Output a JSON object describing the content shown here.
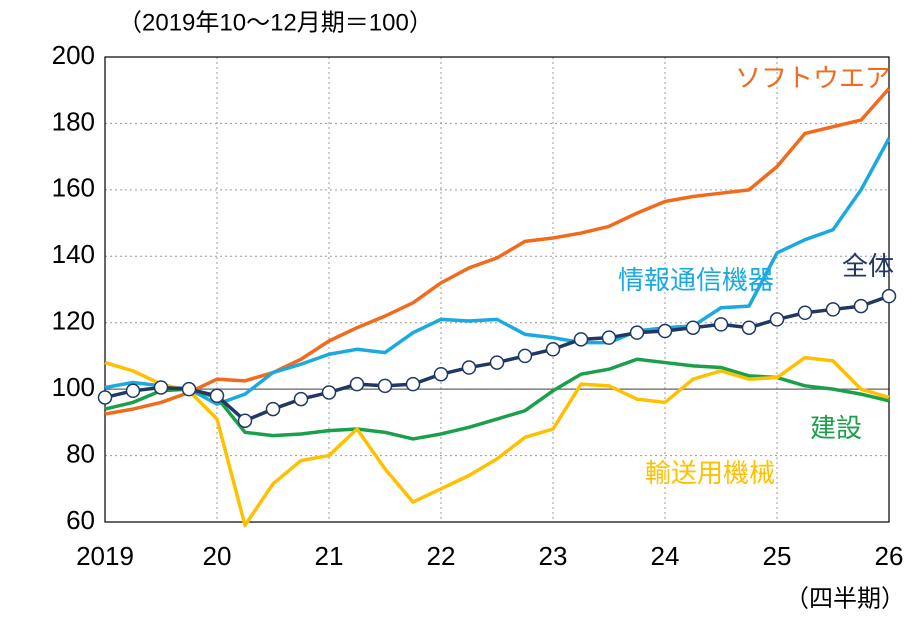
{
  "chart_data": {
    "type": "line",
    "title": "（2019年10～12月期＝100）",
    "x_label": "（四半期）",
    "x": [
      2019,
      2019.25,
      2019.5,
      2019.75,
      2020,
      2020.25,
      2020.5,
      2020.75,
      2021,
      2021.25,
      2021.5,
      2021.75,
      2022,
      2022.25,
      2022.5,
      2022.75,
      2023,
      2023.25,
      2023.5,
      2023.75,
      2024,
      2024.25,
      2024.5,
      2024.75,
      2025,
      2025.25,
      2025.5,
      2025.75,
      2026
    ],
    "xlim": [
      2019,
      2026
    ],
    "xticks": [
      2019,
      {
        "value": 2020,
        "label": "20"
      },
      {
        "value": 2021,
        "label": "21"
      },
      {
        "value": 2022,
        "label": "22"
      },
      {
        "value": 2023,
        "label": "23"
      },
      {
        "value": 2024,
        "label": "24"
      },
      {
        "value": 2025,
        "label": "25"
      },
      {
        "value": 2026,
        "label": "26"
      }
    ],
    "ylim": [
      60,
      200
    ],
    "yticks": [
      60,
      80,
      100,
      120,
      140,
      160,
      180,
      200
    ],
    "grid": true,
    "reference_line": 100,
    "series": [
      {
        "name": "ソフトウエア",
        "color": "#f26b1d",
        "values": [
          92.5,
          94,
          96,
          99,
          103,
          102.5,
          105,
          109,
          114.5,
          118.5,
          122,
          126,
          132,
          136.5,
          139.5,
          144.5,
          145.5,
          147,
          149,
          153,
          156.5,
          158,
          159,
          160,
          167,
          177,
          179,
          181,
          190.5
        ]
      },
      {
        "name": "情報通信機器",
        "color": "#1aa9e0",
        "values": [
          100.5,
          102,
          101,
          100,
          95.5,
          98.5,
          105,
          107.5,
          110.5,
          112,
          111,
          117,
          121,
          120.5,
          121,
          116.5,
          115.5,
          114,
          114,
          117.5,
          118.5,
          119,
          124.5,
          125,
          141,
          145,
          148,
          160,
          175.5
        ]
      },
      {
        "name": "建設",
        "color": "#1aa04a",
        "values": [
          94,
          96,
          99.5,
          100,
          97.5,
          87,
          86,
          86.5,
          87.5,
          88,
          87,
          85,
          86.5,
          88.5,
          91,
          93.5,
          99.5,
          104.5,
          106,
          109,
          108,
          107,
          106.5,
          104,
          103.5,
          101,
          100,
          98.5,
          96.5
        ]
      },
      {
        "name": "輸送用機械",
        "color": "#ffc000",
        "values": [
          108,
          105.5,
          101.5,
          99.5,
          91,
          59,
          71.5,
          78.5,
          80,
          88,
          76,
          66,
          70,
          74,
          79,
          85.5,
          88,
          101.5,
          101,
          97,
          96,
          103,
          105.5,
          103,
          103.5,
          109.5,
          108.5,
          100,
          97.5
        ]
      },
      {
        "name": "全体",
        "color": "#1f3864",
        "markers": true,
        "values": [
          97.5,
          99.5,
          100.5,
          100,
          98,
          90.5,
          94,
          97,
          99,
          101.5,
          101,
          101.5,
          104.5,
          106.5,
          108,
          110,
          112,
          115,
          115.5,
          117,
          117.5,
          118.5,
          119.5,
          118.5,
          121,
          123,
          124,
          125,
          128
        ]
      }
    ]
  }
}
